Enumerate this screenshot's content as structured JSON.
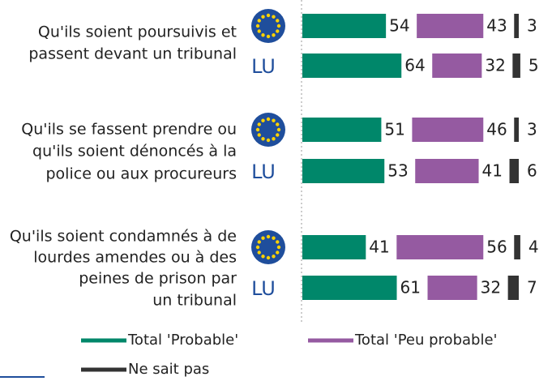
{
  "chart_data": {
    "type": "bar",
    "orientation": "horizontal",
    "stacked": true,
    "groups": [
      [
        "Qu'ils soient poursuivis et",
        "passent devant un tribunal"
      ],
      [
        "Qu'ils se fassent prendre ou",
        "qu'ils soient dénoncés à la",
        "police ou aux procureurs"
      ],
      [
        "Qu'ils soient condamnés à de",
        "lourdes amendes ou à des",
        "peines de prison par",
        "un tribunal"
      ]
    ],
    "categories": [
      null,
      "LU",
      null,
      "LU",
      null,
      "LU"
    ],
    "series": [
      {
        "name": "Total 'Probable'",
        "color": "#00876a",
        "values": [
          54,
          64,
          51,
          53,
          41,
          61
        ]
      },
      {
        "name": "Total 'Peu probable'",
        "color": "#955aa1",
        "values": [
          43,
          32,
          46,
          41,
          56,
          32
        ]
      },
      {
        "name": "Ne sait pas",
        "color": "#333333",
        "values": [
          3,
          5,
          3,
          6,
          4,
          7
        ]
      }
    ]
  }
}
